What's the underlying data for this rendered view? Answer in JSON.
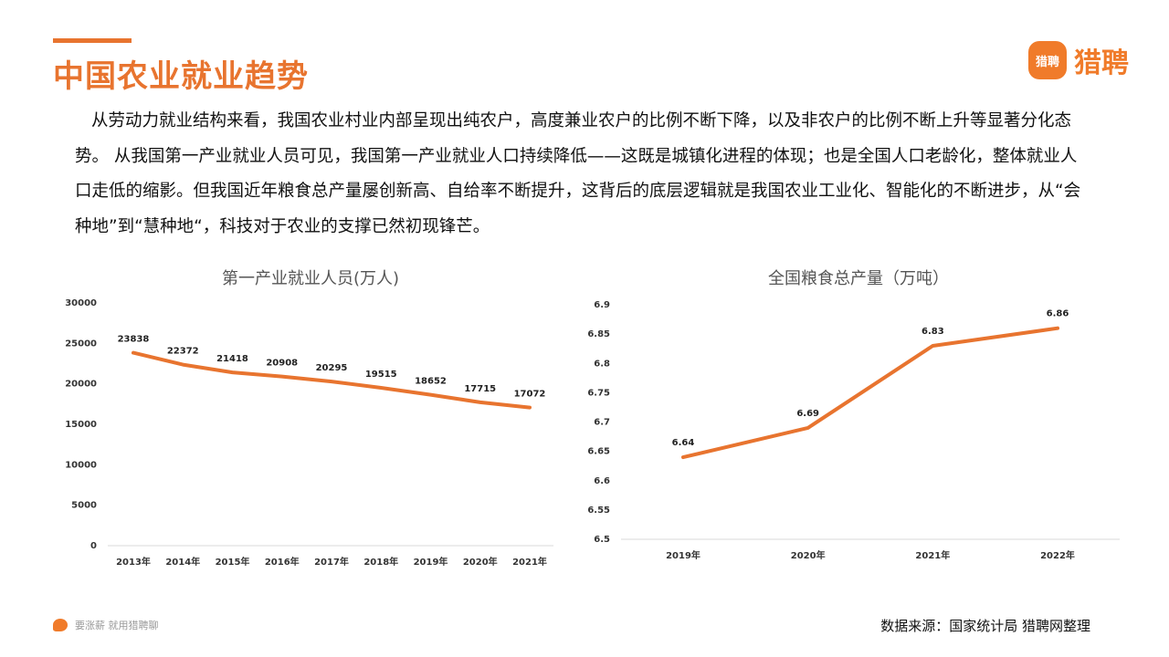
{
  "page": {
    "title": "中国农业就业趋势",
    "brand_icon_text": "猎聘",
    "brand_name": "猎聘",
    "intro": "从劳动力就业结构来看，我国农业村业内部呈现出纯农户，高度兼业农户的比例不断下降，以及非农户的比例不断上升等显著分化态势。 从我国第一产业就业人员可见，我国第一产业就业人口持续降低——这既是城镇化进程的体现；也是全国人口老龄化，整体就业人口走低的缩影。但我国近年粮食总产量屡创新高、自给率不断提升，这背后的底层逻辑就是我国农业工业化、智能化的不断进步，从“会种地”到“慧种地“，科技对于农业的支撑已然初现锋芒。",
    "footer_slogan": "要涨薪 就用猎聘聊",
    "source": "数据来源：国家统计局 猎聘网整理",
    "accent_color": "#e8742f"
  },
  "chart_data": [
    {
      "type": "line",
      "title": "第一产业就业人员(万人)",
      "categories": [
        "2013年",
        "2014年",
        "2015年",
        "2016年",
        "2017年",
        "2018年",
        "2019年",
        "2020年",
        "2021年"
      ],
      "series": [
        {
          "values": [
            23838,
            22372,
            21418,
            20908,
            20295,
            19515,
            18652,
            17715,
            17072
          ],
          "color": "#e8742f"
        }
      ],
      "ylim": [
        0,
        30000
      ],
      "yticks": [
        "0",
        "5000",
        "10000",
        "15000",
        "20000",
        "25000",
        "30000"
      ],
      "grid": false
    },
    {
      "type": "line",
      "title": "全国粮食总产量（万吨）",
      "categories": [
        "2019年",
        "2020年",
        "2021年",
        "2022年"
      ],
      "series": [
        {
          "values": [
            6.64,
            6.69,
            6.83,
            6.86
          ],
          "color": "#e8742f"
        }
      ],
      "ylim": [
        6.5,
        6.9
      ],
      "yticks": [
        "6.5",
        "6.55",
        "6.6",
        "6.65",
        "6.7",
        "6.75",
        "6.8",
        "6.85",
        "6.9"
      ],
      "grid": false
    }
  ]
}
